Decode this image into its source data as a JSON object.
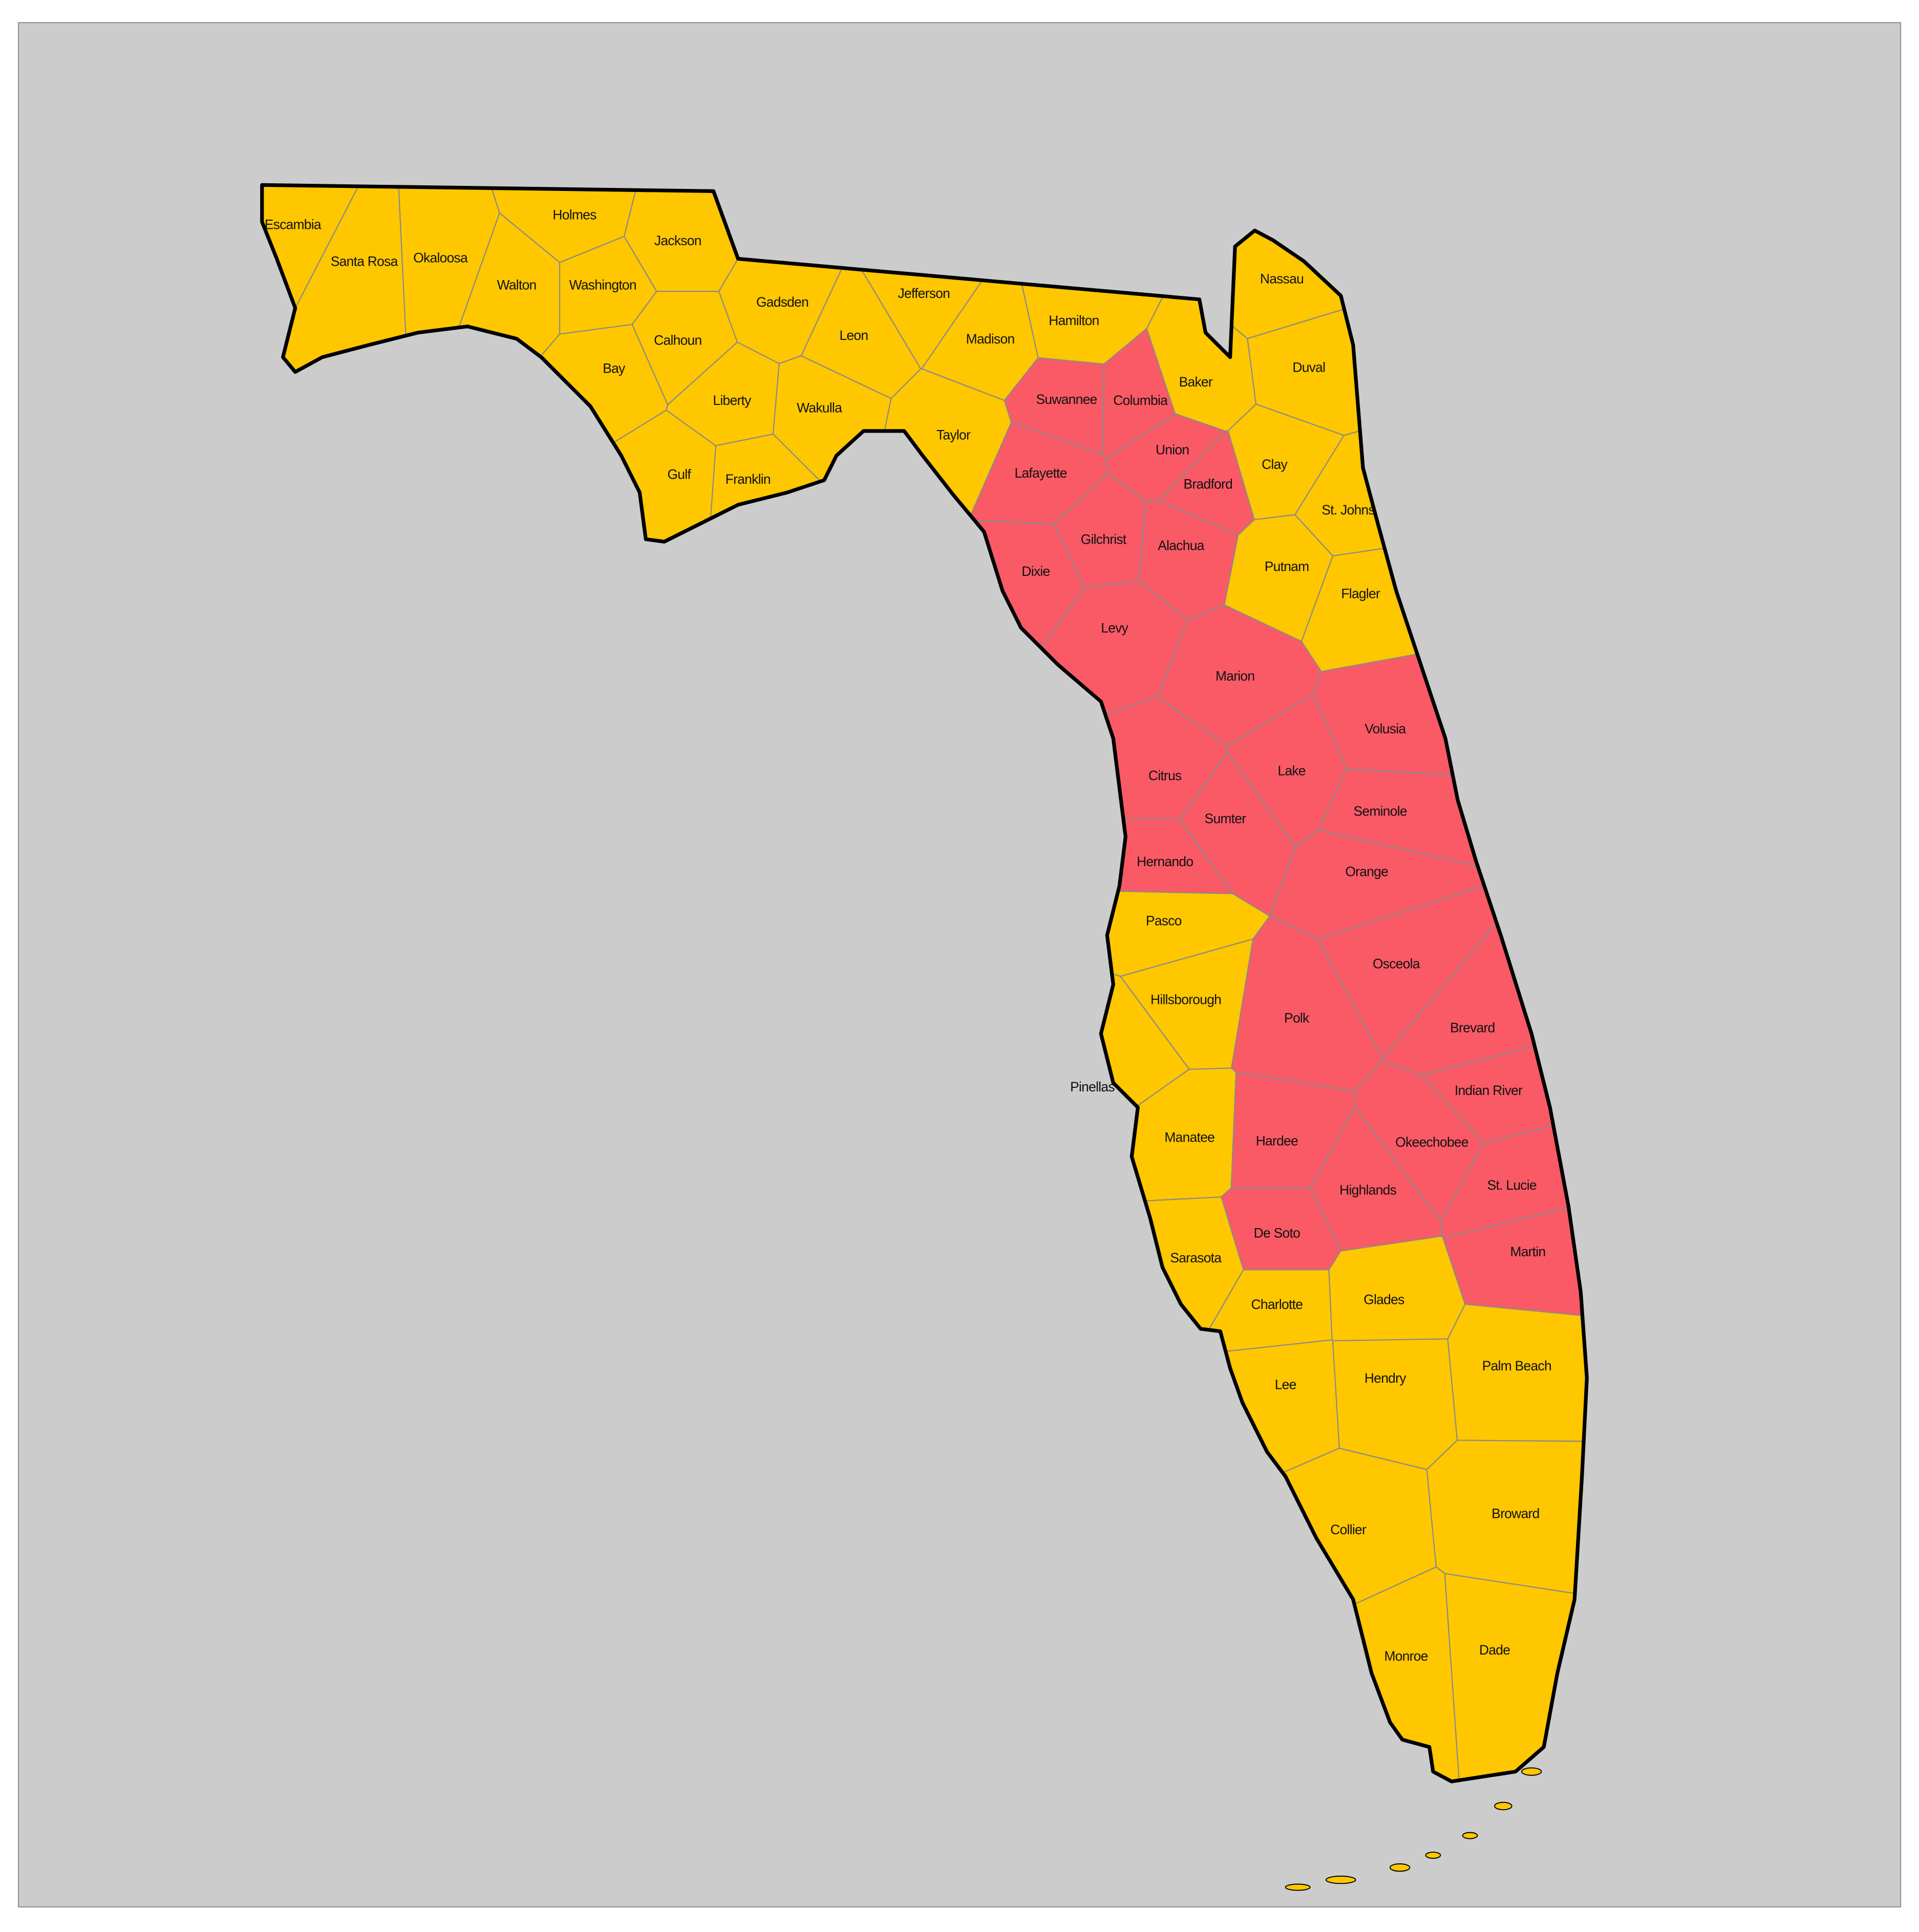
{
  "map": {
    "counties": [
      {
        "name": "Escambia",
        "color": "#ffc700"
      },
      {
        "name": "Santa Rosa",
        "color": "#ffc700"
      },
      {
        "name": "Okaloosa",
        "color": "#ffc700"
      },
      {
        "name": "Walton",
        "color": "#ffc700"
      },
      {
        "name": "Holmes",
        "color": "#ffc700"
      },
      {
        "name": "Washington",
        "color": "#ffc700"
      },
      {
        "name": "Jackson",
        "color": "#ffc700"
      },
      {
        "name": "Bay",
        "color": "#ffc700"
      },
      {
        "name": "Calhoun",
        "color": "#ffc700"
      },
      {
        "name": "Gadsden",
        "color": "#ffc700"
      },
      {
        "name": "Liberty",
        "color": "#ffc700"
      },
      {
        "name": "Leon",
        "color": "#ffc700"
      },
      {
        "name": "Jefferson",
        "color": "#ffc700"
      },
      {
        "name": "Wakulla",
        "color": "#ffc700"
      },
      {
        "name": "Gulf",
        "color": "#ffc700"
      },
      {
        "name": "Franklin",
        "color": "#ffc700"
      },
      {
        "name": "Madison",
        "color": "#ffc700"
      },
      {
        "name": "Hamilton",
        "color": "#ffc700"
      },
      {
        "name": "Taylor",
        "color": "#ffc700"
      },
      {
        "name": "Suwannee",
        "color": "#f95a66"
      },
      {
        "name": "Columbia",
        "color": "#f95a66"
      },
      {
        "name": "Baker",
        "color": "#ffc700"
      },
      {
        "name": "Nassau",
        "color": "#ffc700"
      },
      {
        "name": "Duval",
        "color": "#ffc700"
      },
      {
        "name": "Lafayette",
        "color": "#f95a66"
      },
      {
        "name": "Union",
        "color": "#f95a66"
      },
      {
        "name": "Bradford",
        "color": "#f95a66"
      },
      {
        "name": "Clay",
        "color": "#ffc700"
      },
      {
        "name": "St. Johns",
        "color": "#ffc700"
      },
      {
        "name": "Gilchrist",
        "color": "#f95a66"
      },
      {
        "name": "Alachua",
        "color": "#f95a66"
      },
      {
        "name": "Putnam",
        "color": "#ffc700"
      },
      {
        "name": "Dixie",
        "color": "#f95a66"
      },
      {
        "name": "Flagler",
        "color": "#ffc700"
      },
      {
        "name": "Levy",
        "color": "#f95a66"
      },
      {
        "name": "Marion",
        "color": "#f95a66"
      },
      {
        "name": "Volusia",
        "color": "#f95a66"
      },
      {
        "name": "Lake",
        "color": "#f95a66"
      },
      {
        "name": "Citrus",
        "color": "#f95a66"
      },
      {
        "name": "Seminole",
        "color": "#f95a66"
      },
      {
        "name": "Sumter",
        "color": "#f95a66"
      },
      {
        "name": "Hernando",
        "color": "#f95a66"
      },
      {
        "name": "Orange",
        "color": "#f95a66"
      },
      {
        "name": "Pasco",
        "color": "#ffc700"
      },
      {
        "name": "Osceola",
        "color": "#f95a66"
      },
      {
        "name": "Hillsborough",
        "color": "#ffc700"
      },
      {
        "name": "Polk",
        "color": "#f95a66"
      },
      {
        "name": "Brevard",
        "color": "#f95a66"
      },
      {
        "name": "Pinellas",
        "color": "#ffc700"
      },
      {
        "name": "Indian River",
        "color": "#f95a66"
      },
      {
        "name": "Manatee",
        "color": "#ffc700"
      },
      {
        "name": "Hardee",
        "color": "#f95a66"
      },
      {
        "name": "Okeechobee",
        "color": "#f95a66"
      },
      {
        "name": "Highlands",
        "color": "#f95a66"
      },
      {
        "name": "St. Lucie",
        "color": "#f95a66"
      },
      {
        "name": "De Soto",
        "color": "#f95a66"
      },
      {
        "name": "Sarasota",
        "color": "#ffc700"
      },
      {
        "name": "Martin",
        "color": "#f95a66"
      },
      {
        "name": "Charlotte",
        "color": "#ffc700"
      },
      {
        "name": "Glades",
        "color": "#ffc700"
      },
      {
        "name": "Palm Beach",
        "color": "#ffc700"
      },
      {
        "name": "Lee",
        "color": "#ffc700"
      },
      {
        "name": "Hendry",
        "color": "#ffc700"
      },
      {
        "name": "Collier",
        "color": "#ffc700"
      },
      {
        "name": "Broward",
        "color": "#ffc700"
      },
      {
        "name": "Monroe",
        "color": "#ffc700"
      },
      {
        "name": "Dade",
        "color": "#ffc700"
      }
    ]
  }
}
